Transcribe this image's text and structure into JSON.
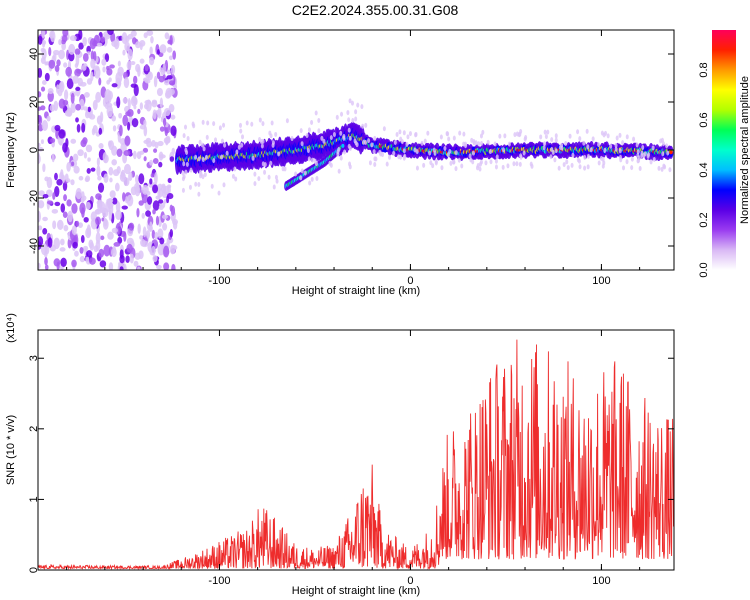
{
  "title": "C2E2.2024.355.00.31.G08",
  "colorbar": {
    "label": "Normalized spectral amplitude",
    "ticks": [
      "0.0",
      "0.2",
      "0.4",
      "0.6",
      "0.8"
    ],
    "tick_values": [
      0.0,
      0.2,
      0.4,
      0.6,
      0.8
    ],
    "range": [
      0,
      0.96
    ],
    "colors": [
      "#ffffff",
      "#d9b8f5",
      "#9a3cf0",
      "#5a00e6",
      "#0000ff",
      "#00bfff",
      "#00ffcc",
      "#00ff55",
      "#b2ff00",
      "#ffff00",
      "#ff9900",
      "#ff2000",
      "#ff005a"
    ]
  },
  "chart_data": [
    {
      "type": "heatmap",
      "title": "C2E2.2024.355.00.31.G08",
      "xlabel": "Height of straight line (km)",
      "ylabel": "Frequency (Hz)",
      "xlim": [
        -195,
        138
      ],
      "ylim": [
        -50,
        50
      ],
      "xticks": [
        -100,
        0,
        100
      ],
      "xtick_labels": [
        "-100",
        "0",
        "100"
      ],
      "yticks": [
        -40,
        -20,
        0,
        20,
        40
      ],
      "ytick_labels": [
        "-40",
        "-20",
        "0",
        "20",
        "40"
      ],
      "grid": false,
      "description_points": {
        "noise_region_x": [
          -195,
          -123
        ],
        "main_track": {
          "x": [
            -120,
            -100,
            -80,
            -60,
            -40,
            -30,
            -20,
            0,
            20,
            60,
            100,
            135
          ],
          "y": [
            -4,
            -3,
            -2,
            0,
            3,
            6,
            2,
            0,
            -1,
            0,
            0,
            -1
          ]
        },
        "split_branch": {
          "x": [
            -65,
            -55,
            -45,
            -35
          ],
          "y": [
            -15,
            -10,
            -5,
            2
          ]
        }
      },
      "value_range": [
        0,
        0.96
      ]
    },
    {
      "type": "line",
      "xlabel": "Height of straight line (km)",
      "ylabel": "SNR (10 * v/v)",
      "y_multiplier": "(x10⁴)",
      "xlim": [
        -195,
        138
      ],
      "ylim": [
        0,
        3.4
      ],
      "xticks": [
        -100,
        0,
        100
      ],
      "xtick_labels": [
        "-100",
        "0",
        "100"
      ],
      "yticks": [
        0,
        1,
        2,
        3
      ],
      "ytick_labels": [
        "0",
        "1",
        "2",
        "3"
      ],
      "color": "#ee2c2c",
      "envelope": {
        "x": [
          -195,
          -130,
          -115,
          -100,
          -85,
          -78,
          -70,
          -60,
          -50,
          -40,
          -30,
          -25,
          -20,
          -15,
          -10,
          -5,
          0,
          10,
          15,
          20,
          30,
          40,
          50,
          60,
          70,
          80,
          90,
          100,
          110,
          120,
          130,
          138
        ],
        "y": [
          0.05,
          0.04,
          0.2,
          0.4,
          0.6,
          0.95,
          0.7,
          0.35,
          0.3,
          0.35,
          0.9,
          1.4,
          1.5,
          0.7,
          0.5,
          0.4,
          0.3,
          0.6,
          1.2,
          1.9,
          2.2,
          2.8,
          3.0,
          3.3,
          3.1,
          2.9,
          2.6,
          2.8,
          2.9,
          2.4,
          2.2,
          2.0
        ]
      }
    }
  ]
}
